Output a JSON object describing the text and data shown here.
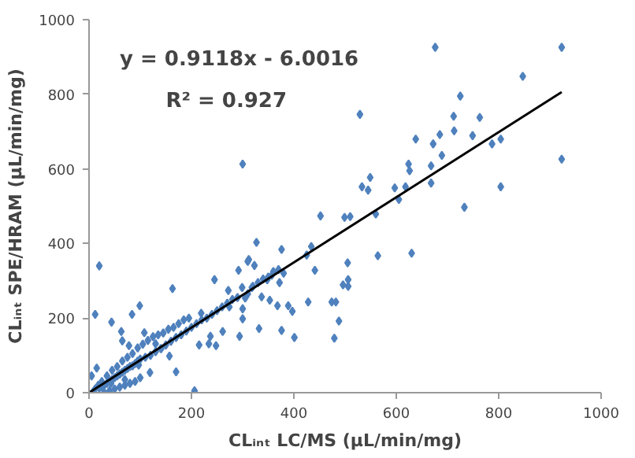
{
  "chart_data": {
    "type": "scatter",
    "xlabel": "CLᵢₙₜ LC/MS (µL/min/mg)",
    "ylabel": "CLᵢₙₜ SPE/HRAM (µL/min/mg)",
    "annotations": [
      "y = 0.9118x - 6.0016",
      "R² = 0.927"
    ],
    "xlim": [
      0,
      1000
    ],
    "ylim": [
      0,
      1000
    ],
    "xticks": [
      0,
      200,
      400,
      600,
      800,
      1000
    ],
    "yticks": [
      0,
      200,
      400,
      600,
      800,
      1000
    ],
    "grid": false,
    "marker": "diamond",
    "series": [
      {
        "color": "#4f81bd",
        "x": [
          923,
          676,
          847,
          923,
          725,
          712,
          763,
          529,
          300,
          685,
          713,
          749,
          672,
          638,
          689,
          787,
          804,
          804,
          733,
          630,
          564,
          624,
          626,
          668,
          668,
          618,
          597,
          605,
          533,
          549,
          545,
          560,
          510,
          499,
          452,
          506,
          505,
          496,
          506,
          401,
          434,
          376,
          425,
          441,
          428,
          397,
          376,
          294,
          479,
          482,
          488,
          474,
          389,
          372,
          357,
          348,
          323,
          327,
          312,
          310,
          292,
          318,
          337,
          353,
          368,
          299,
          305,
          274,
          245,
          272,
          300,
          300,
          332,
          261,
          237,
          248,
          215,
          234,
          206,
          170,
          219,
          163,
          157,
          141,
          130,
          108,
          65,
          44,
          84,
          99,
          12,
          78,
          63,
          97,
          119,
          43,
          15,
          20,
          25,
          30,
          35,
          40,
          45,
          50,
          55,
          60,
          65,
          70,
          75,
          80,
          85,
          90,
          95,
          100,
          110,
          120,
          130,
          140,
          150,
          160,
          170,
          180,
          190,
          200,
          210,
          220,
          230,
          240,
          250,
          260,
          270,
          280,
          290,
          310,
          320,
          330,
          340,
          350,
          360,
          370,
          380,
          20,
          30,
          40,
          50,
          60,
          70,
          80,
          90,
          100,
          60,
          70,
          5,
          8,
          12,
          18,
          25,
          35,
          45,
          55,
          65,
          75,
          85,
          95,
          105,
          115,
          125,
          135,
          145,
          155,
          165,
          175,
          185,
          195
        ],
        "values": [
          926,
          926,
          848,
          626,
          795,
          741,
          738,
          746,
          613,
          692,
          702,
          689,
          667,
          680,
          636,
          667,
          680,
          552,
          497,
          374,
          367,
          613,
          595,
          608,
          562,
          552,
          549,
          518,
          552,
          577,
          543,
          479,
          472,
          470,
          474,
          303,
          348,
          289,
          285,
          148,
          392,
          384,
          369,
          328,
          243,
          218,
          167,
          151,
          146,
          243,
          192,
          243,
          233,
          295,
          315,
          303,
          341,
          403,
          357,
          352,
          328,
          282,
          257,
          248,
          233,
          282,
          254,
          230,
          303,
          274,
          225,
          198,
          172,
          164,
          151,
          126,
          128,
          131,
          5,
          56,
          213,
          279,
          98,
          118,
          131,
          161,
          139,
          189,
          210,
          233,
          210,
          126,
          164,
          74,
          54,
          25,
          66,
          12,
          15,
          20,
          25,
          30,
          35,
          40,
          45,
          50,
          55,
          60,
          65,
          70,
          72,
          78,
          85,
          90,
          95,
          100,
          110,
          118,
          128,
          138,
          148,
          155,
          165,
          175,
          185,
          195,
          200,
          210,
          220,
          230,
          240,
          250,
          255,
          265,
          285,
          295,
          305,
          310,
          325,
          330,
          320,
          340,
          0,
          5,
          10,
          15,
          20,
          25,
          30,
          40,
          50,
          35,
          45,
          2,
          10,
          20,
          30,
          45,
          60,
          70,
          85,
          95,
          105,
          120,
          130,
          140,
          150,
          155,
          160,
          170,
          175,
          185,
          195,
          200
        ]
      },
      {
        "type": "line",
        "marker": "none",
        "color": "#000000",
        "x": [
          0,
          923
        ],
        "values": [
          0,
          806
        ]
      }
    ]
  }
}
